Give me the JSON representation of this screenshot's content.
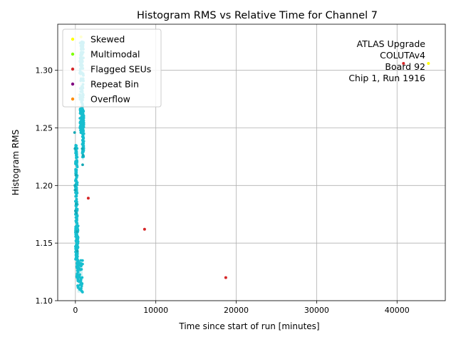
{
  "chart_data": {
    "type": "scatter",
    "title": "Histogram RMS vs Relative Time for Channel 7",
    "xlabel": "Time since start of run [minutes]",
    "ylabel": "Histogram RMS",
    "xlim": [
      -2200,
      46000
    ],
    "ylim": [
      1.1,
      1.34
    ],
    "xticks": [
      0,
      10000,
      20000,
      30000,
      40000
    ],
    "yticks": [
      1.1,
      1.15,
      1.2,
      1.25,
      1.3
    ],
    "xtick_labels": [
      "0",
      "10000",
      "20000",
      "30000",
      "40000"
    ],
    "ytick_labels": [
      "1.10",
      "1.15",
      "1.20",
      "1.25",
      "1.30"
    ],
    "grid": true,
    "legend_position": "top-left",
    "annotation": [
      "ATLAS Upgrade",
      "COLUTAv4",
      "Board 92",
      "Chip 1, Run 1916"
    ],
    "colors": {
      "main": "#17becf",
      "main_dark": "#12a8b5",
      "mesh": "#b5e9ec"
    },
    "series": [
      {
        "name": "Skewed",
        "color": "#ffff00",
        "points": [
          [
            43900,
            1.306
          ],
          [
            700,
            1.329
          ]
        ]
      },
      {
        "name": "Multimodal",
        "color": "#7fff00",
        "points": []
      },
      {
        "name": "Flagged SEUs",
        "color": "#d62728",
        "points": [
          [
            1600,
            1.189
          ],
          [
            8600,
            1.162
          ],
          [
            18700,
            1.12
          ],
          [
            40800,
            1.306
          ]
        ]
      },
      {
        "name": "Repeat Bin",
        "color": "#800080",
        "points": []
      },
      {
        "name": "Overflow",
        "color": "#ff8c00",
        "points": []
      }
    ],
    "main_clusters": [
      {
        "x_range": [
          0,
          250
        ],
        "y_range": [
          1.135,
          1.235
        ]
      },
      {
        "x_range": [
          150,
          350
        ],
        "y_range": [
          1.12,
          1.165
        ]
      },
      {
        "x_range": [
          250,
          900
        ],
        "y_range": [
          1.107,
          1.135
        ]
      },
      {
        "x_range": [
          550,
          1000
        ],
        "y_range": [
          1.245,
          1.325
        ]
      },
      {
        "x_range": [
          850,
          1050
        ],
        "y_range": [
          1.222,
          1.265
        ]
      }
    ],
    "main_points": [
      [
        -100,
        1.246
      ],
      [
        -50,
        1.232
      ],
      [
        900,
        1.218
      ],
      [
        950,
        1.226
      ],
      [
        850,
        1.232
      ],
      [
        50,
        1.209
      ],
      [
        100,
        1.184
      ],
      [
        0,
        1.178
      ],
      [
        150,
        1.176
      ],
      [
        200,
        1.16
      ],
      [
        -60,
        1.2
      ],
      [
        -40,
        1.196
      ],
      [
        250,
        1.143
      ]
    ]
  }
}
